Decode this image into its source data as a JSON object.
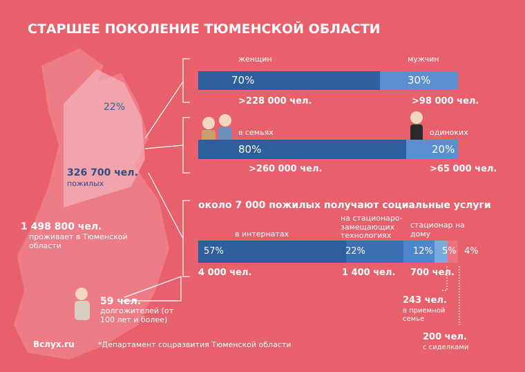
{
  "title": "СТАРШЕЕ ПОКОЛЕНИЕ ТЮМЕНСКОЙ ОБЛАСТИ",
  "region": {
    "share": "22%",
    "count": "326 700 чел.",
    "count_label": "пожилых",
    "total": "1 498 800 чел.",
    "total_label": "проживает в Тюменской области"
  },
  "gender": {
    "segments": [
      {
        "name": "женщин",
        "value": 70,
        "label": "70%",
        "count": ">228 000 чел."
      },
      {
        "name": "мужчин",
        "value": 30,
        "label": "30%",
        "count": ">98 000 чел."
      }
    ]
  },
  "family": {
    "segments": [
      {
        "name": "в семьях",
        "value": 80,
        "label": "80%",
        "count": ">260 000 чел."
      },
      {
        "name": "одиноких",
        "value": 20,
        "label": "20%",
        "count": ">65 000 чел."
      }
    ]
  },
  "services": {
    "title": "около 7 000 пожилых получают социальные услуги",
    "segments": [
      {
        "name": "в интернатах",
        "value": 57,
        "label": "57%",
        "count": "4 000 чел."
      },
      {
        "name": "на стационаро-замещающих технологиях",
        "value": 22,
        "label": "22%",
        "count": "1 400 чел."
      },
      {
        "name": "стационар на дому",
        "value": 12,
        "label": "12%",
        "count": "700 чел."
      },
      {
        "value": 5,
        "label": "5%",
        "count": "243 чел.",
        "note": "в приемной семье"
      },
      {
        "value": 4,
        "label": "4%",
        "count": "200 чел.",
        "note": "с сиделками"
      }
    ]
  },
  "centenarians": {
    "count": "59 чел.",
    "label": "долгожителей (от 100 лет и более)"
  },
  "footer": {
    "site": "Вслух.ru",
    "source": "*Департамент соцразвития Тюменской области"
  }
}
